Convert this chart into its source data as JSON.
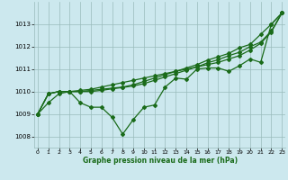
{
  "x": [
    0,
    1,
    2,
    3,
    4,
    5,
    6,
    7,
    8,
    9,
    10,
    11,
    12,
    13,
    14,
    15,
    16,
    17,
    18,
    19,
    20,
    21,
    22,
    23
  ],
  "series": {
    "main": [
      1009.0,
      1009.5,
      1009.9,
      1010.0,
      1009.5,
      1009.3,
      1009.3,
      1008.85,
      1008.1,
      1008.75,
      1009.3,
      1009.4,
      1010.2,
      1010.6,
      1010.55,
      1011.0,
      1011.05,
      1011.05,
      1010.9,
      1011.15,
      1011.45,
      1011.3,
      1013.0,
      1013.5
    ],
    "line_smooth1": [
      1009.0,
      1009.9,
      1010.0,
      1010.0,
      1010.05,
      1010.1,
      1010.2,
      1010.3,
      1010.4,
      1010.5,
      1010.6,
      1010.7,
      1010.8,
      1010.9,
      1011.0,
      1011.1,
      1011.2,
      1011.3,
      1011.45,
      1011.6,
      1011.85,
      1012.15,
      1012.65,
      1013.5
    ],
    "line_smooth2": [
      1009.0,
      1009.9,
      1010.0,
      1010.0,
      1010.0,
      1010.05,
      1010.1,
      1010.15,
      1010.2,
      1010.3,
      1010.45,
      1010.6,
      1010.75,
      1010.9,
      1011.05,
      1011.2,
      1011.4,
      1011.55,
      1011.7,
      1011.95,
      1012.1,
      1012.55,
      1013.0,
      1013.5
    ],
    "line_straight": [
      1009.0,
      1009.9,
      1010.0,
      1010.0,
      1010.0,
      1010.0,
      1010.05,
      1010.12,
      1010.18,
      1010.25,
      1010.35,
      1010.5,
      1010.65,
      1010.8,
      1010.95,
      1011.1,
      1011.28,
      1011.42,
      1011.6,
      1011.75,
      1012.0,
      1012.2,
      1012.7,
      1013.5
    ]
  },
  "ylim": [
    1007.5,
    1014.0
  ],
  "yticks": [
    1008,
    1009,
    1010,
    1011,
    1012,
    1013
  ],
  "xticks": [
    0,
    1,
    2,
    3,
    4,
    5,
    6,
    7,
    8,
    9,
    10,
    11,
    12,
    13,
    14,
    15,
    16,
    17,
    18,
    19,
    20,
    21,
    22,
    23
  ],
  "xlabel": "Graphe pression niveau de la mer (hPa)",
  "line_color": "#1a6b1a",
  "bg_color": "#cce8ee",
  "grid_color": "#99bbbb",
  "marker": "D",
  "marker_size": 2.0,
  "line_width": 0.9
}
